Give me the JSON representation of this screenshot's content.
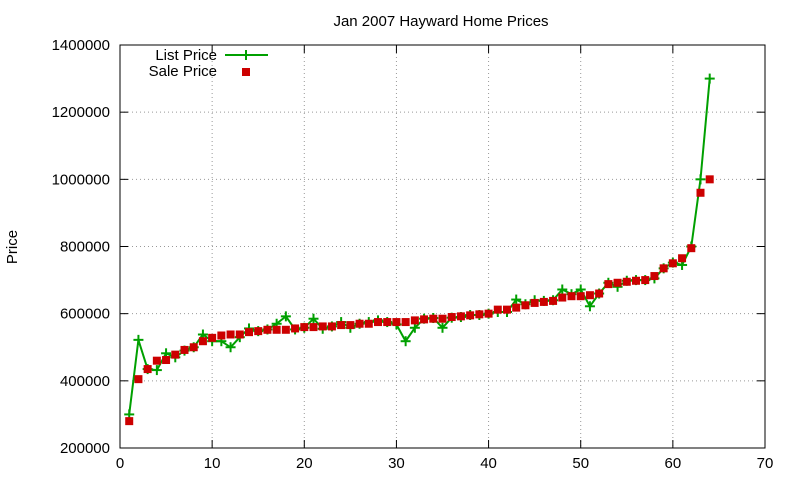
{
  "chart_data": {
    "type": "line",
    "title": "Jan 2007 Hayward Home Prices",
    "xlabel": "",
    "ylabel": "Price",
    "xlim": [
      0,
      70
    ],
    "ylim": [
      200000,
      1400000
    ],
    "xticks": [
      0,
      10,
      20,
      30,
      40,
      50,
      60,
      70
    ],
    "yticks": [
      200000,
      400000,
      600000,
      800000,
      1000000,
      1200000,
      1400000
    ],
    "grid": true,
    "legend_position": "top-left",
    "series": [
      {
        "name": "List Price",
        "style": "line-with-plus-markers",
        "color": "#00a000",
        "x": [
          1,
          2,
          3,
          4,
          5,
          6,
          7,
          8,
          9,
          10,
          11,
          12,
          13,
          14,
          15,
          16,
          17,
          18,
          19,
          20,
          21,
          22,
          23,
          24,
          25,
          26,
          27,
          28,
          29,
          30,
          31,
          32,
          33,
          34,
          35,
          36,
          37,
          38,
          39,
          40,
          41,
          42,
          43,
          44,
          45,
          46,
          47,
          48,
          49,
          50,
          51,
          52,
          53,
          54,
          55,
          56,
          57,
          58,
          59,
          60,
          61,
          62,
          63,
          64
        ],
        "y": [
          300000,
          522000,
          435000,
          432000,
          482000,
          470000,
          490000,
          500000,
          538000,
          518000,
          518000,
          500000,
          530000,
          556000,
          548000,
          553000,
          570000,
          592000,
          553000,
          558000,
          585000,
          555000,
          562000,
          575000,
          558000,
          570000,
          575000,
          580000,
          575000,
          568000,
          518000,
          558000,
          585000,
          587000,
          558000,
          588000,
          590000,
          596000,
          596000,
          600000,
          605000,
          605000,
          642000,
          628000,
          640000,
          638000,
          640000,
          672000,
          658000,
          672000,
          622000,
          660000,
          692000,
          680000,
          698000,
          700000,
          700000,
          705000,
          735000,
          752000,
          745000,
          800000,
          1000000,
          1300000
        ]
      },
      {
        "name": "Sale Price",
        "style": "square-markers",
        "color": "#cc0000",
        "x": [
          1,
          2,
          3,
          4,
          5,
          6,
          7,
          8,
          9,
          10,
          11,
          12,
          13,
          14,
          15,
          16,
          17,
          18,
          19,
          20,
          21,
          22,
          23,
          24,
          25,
          26,
          27,
          28,
          29,
          30,
          31,
          32,
          33,
          34,
          35,
          36,
          37,
          38,
          39,
          40,
          41,
          42,
          43,
          44,
          45,
          46,
          47,
          48,
          49,
          50,
          51,
          52,
          53,
          54,
          55,
          56,
          57,
          58,
          59,
          60,
          61,
          62,
          63,
          64
        ],
        "y": [
          280000,
          405000,
          435000,
          460000,
          462000,
          478000,
          492000,
          500000,
          518000,
          528000,
          535000,
          538000,
          538000,
          545000,
          548000,
          552000,
          552000,
          552000,
          556000,
          560000,
          560000,
          562000,
          562000,
          566000,
          566000,
          570000,
          570000,
          575000,
          575000,
          575000,
          575000,
          580000,
          583000,
          585000,
          585000,
          590000,
          592000,
          595000,
          598000,
          600000,
          612000,
          612000,
          618000,
          625000,
          632000,
          635000,
          638000,
          648000,
          652000,
          652000,
          655000,
          660000,
          688000,
          692000,
          695000,
          698000,
          700000,
          712000,
          735000,
          750000,
          765000,
          795000,
          960000,
          1000000
        ]
      }
    ]
  }
}
